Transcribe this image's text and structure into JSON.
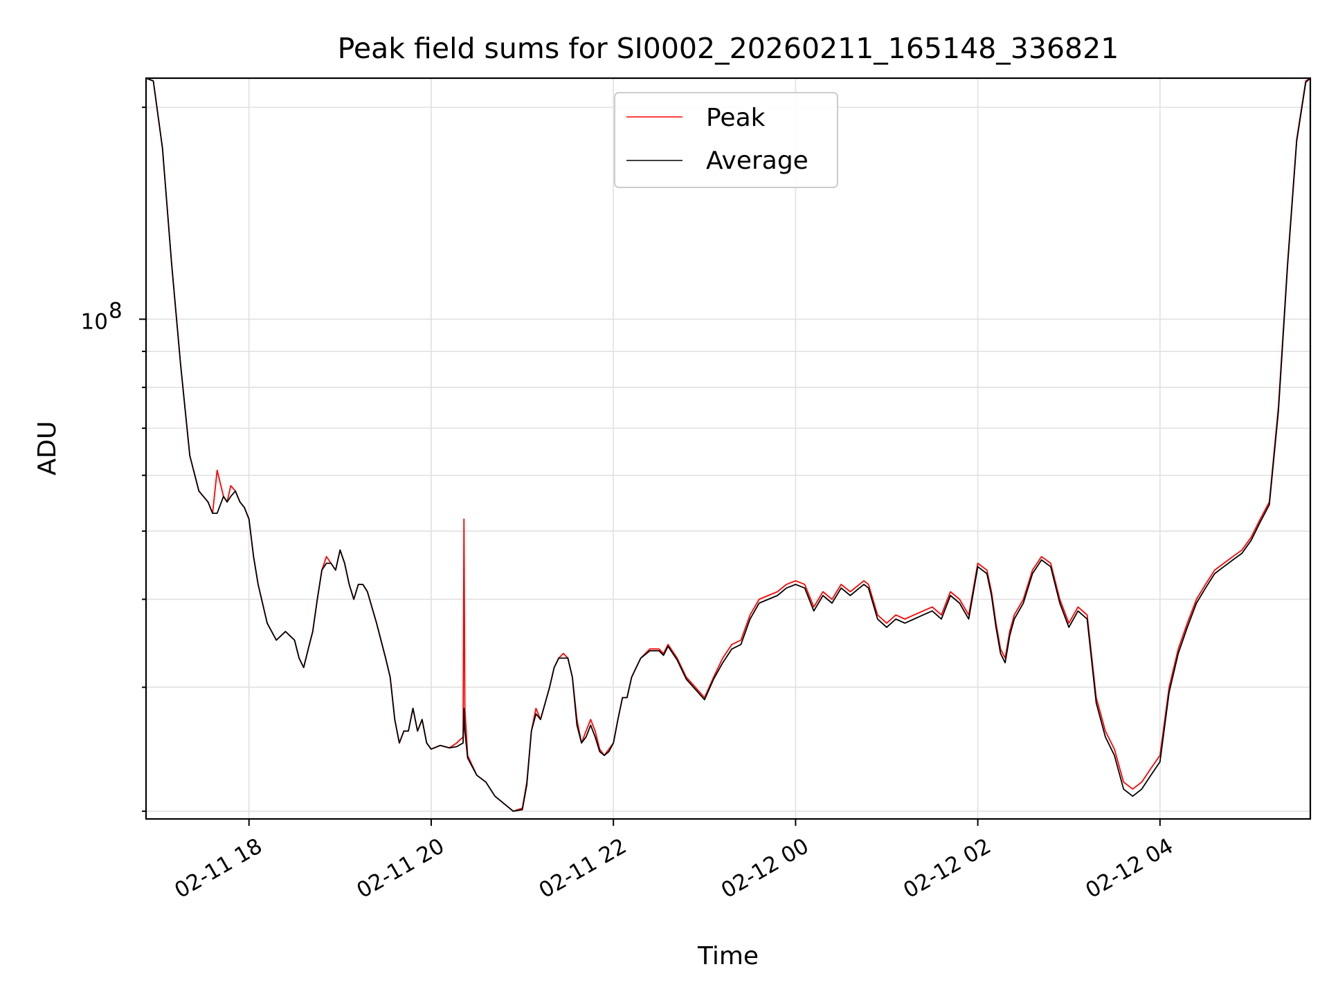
{
  "chart_data": {
    "type": "line",
    "title": "Peak field sums for SI0002_20260211_165148_336821",
    "xlabel": "Time",
    "ylabel": "ADU",
    "yscale": "log",
    "ylim": [
      19500000,
      220000000
    ],
    "xlim_hours": [
      16.87,
      29.65
    ],
    "y_tick_major": {
      "value": 100000000,
      "label_base": "10",
      "label_exp": "8"
    },
    "y_minor_ticks": [
      20000000,
      30000000,
      40000000,
      50000000,
      60000000,
      70000000,
      80000000,
      90000000,
      200000000
    ],
    "x_ticks": [
      {
        "hour": 18,
        "label": "02-11 18"
      },
      {
        "hour": 20,
        "label": "02-11 20"
      },
      {
        "hour": 22,
        "label": "02-11 22"
      },
      {
        "hour": 24,
        "label": "02-12 00"
      },
      {
        "hour": 26,
        "label": "02-12 02"
      },
      {
        "hour": 28,
        "label": "02-12 04"
      }
    ],
    "grid": true,
    "legend": {
      "position": "top-center"
    },
    "series": [
      {
        "name": "Peak",
        "color": "#ff0000",
        "x": [
          16.87,
          16.95,
          17.05,
          17.15,
          17.25,
          17.35,
          17.45,
          17.55,
          17.6,
          17.65,
          17.72,
          17.76,
          17.8,
          17.85,
          17.9,
          17.95,
          18.0,
          18.05,
          18.1,
          18.2,
          18.3,
          18.4,
          18.5,
          18.55,
          18.6,
          18.65,
          18.7,
          18.75,
          18.8,
          18.85,
          18.9,
          18.95,
          19.0,
          19.05,
          19.1,
          19.15,
          19.2,
          19.25,
          19.3,
          19.4,
          19.5,
          19.55,
          19.6,
          19.65,
          19.7,
          19.75,
          19.8,
          19.85,
          19.9,
          19.95,
          20.0,
          20.1,
          20.2,
          20.28,
          20.35,
          20.36,
          20.37,
          20.4,
          20.5,
          20.6,
          20.7,
          20.8,
          20.9,
          21.0,
          21.05,
          21.1,
          21.15,
          21.2,
          21.3,
          21.35,
          21.4,
          21.45,
          21.5,
          21.55,
          21.6,
          21.65,
          21.7,
          21.75,
          21.8,
          21.85,
          21.9,
          21.95,
          22.0,
          22.05,
          22.1,
          22.15,
          22.2,
          22.25,
          22.3,
          22.4,
          22.5,
          22.55,
          22.6,
          22.7,
          22.8,
          22.9,
          23.0,
          23.1,
          23.2,
          23.3,
          23.4,
          23.5,
          23.6,
          23.7,
          23.8,
          23.9,
          24.0,
          24.1,
          24.2,
          24.3,
          24.4,
          24.5,
          24.6,
          24.7,
          24.75,
          24.8,
          24.9,
          25.0,
          25.1,
          25.2,
          25.3,
          25.4,
          25.5,
          25.6,
          25.7,
          25.8,
          25.9,
          26.0,
          26.1,
          26.15,
          26.2,
          26.25,
          26.3,
          26.35,
          26.4,
          26.5,
          26.6,
          26.7,
          26.8,
          26.9,
          27.0,
          27.1,
          27.2,
          27.3,
          27.4,
          27.5,
          27.6,
          27.7,
          27.8,
          27.9,
          28.0,
          28.1,
          28.2,
          28.3,
          28.4,
          28.5,
          28.6,
          28.7,
          28.8,
          28.9,
          29.0,
          29.1,
          29.2,
          29.3,
          29.4,
          29.5,
          29.6,
          29.65
        ],
        "y": [
          220000000,
          218000000,
          175000000,
          120000000,
          86000000,
          64000000,
          57000000,
          55000000,
          53000000,
          61000000,
          56000000,
          55000000,
          58000000,
          57000000,
          55000000,
          54000000,
          52000000,
          46000000,
          42000000,
          37000000,
          35000000,
          36000000,
          35000000,
          33000000,
          32000000,
          34000000,
          36000000,
          40000000,
          44000000,
          46000000,
          45000000,
          44000000,
          47000000,
          45000000,
          42000000,
          40000000,
          42000000,
          42000000,
          41000000,
          37000000,
          33000000,
          31000000,
          27000000,
          25000000,
          26000000,
          26000000,
          28000000,
          26000000,
          27000000,
          25000000,
          24500000,
          24800000,
          24600000,
          25000000,
          25500000,
          52000000,
          28000000,
          24000000,
          22500000,
          22000000,
          21000000,
          20500000,
          20000000,
          20200000,
          22000000,
          26000000,
          28000000,
          27000000,
          30000000,
          32000000,
          33000000,
          33500000,
          33000000,
          31000000,
          27000000,
          25000000,
          26000000,
          27000000,
          26000000,
          24500000,
          24000000,
          24500000,
          25000000,
          27000000,
          29000000,
          29000000,
          31000000,
          32000000,
          33000000,
          34000000,
          34000000,
          33500000,
          34500000,
          33000000,
          31000000,
          30000000,
          29000000,
          31000000,
          33000000,
          34500000,
          35000000,
          38000000,
          40000000,
          40500000,
          41000000,
          42000000,
          42500000,
          42000000,
          39000000,
          41000000,
          40000000,
          42000000,
          41000000,
          42000000,
          42500000,
          42000000,
          38000000,
          37000000,
          38000000,
          37500000,
          38000000,
          38500000,
          39000000,
          38000000,
          41000000,
          40000000,
          38000000,
          45000000,
          44000000,
          41000000,
          37000000,
          34000000,
          33000000,
          36000000,
          38000000,
          40000000,
          44000000,
          46000000,
          45000000,
          40000000,
          37000000,
          39000000,
          38000000,
          29000000,
          26000000,
          24500000,
          22000000,
          21500000,
          22000000,
          23000000,
          24000000,
          30000000,
          34000000,
          37000000,
          40000000,
          42000000,
          44000000,
          45000000,
          46000000,
          47000000,
          49000000,
          52000000,
          55000000,
          75000000,
          120000000,
          180000000,
          218000000,
          220000000
        ]
      },
      {
        "name": "Average",
        "color": "#000000",
        "x": [
          16.87,
          16.95,
          17.05,
          17.15,
          17.25,
          17.35,
          17.45,
          17.55,
          17.6,
          17.65,
          17.72,
          17.76,
          17.8,
          17.85,
          17.9,
          17.95,
          18.0,
          18.05,
          18.1,
          18.2,
          18.3,
          18.4,
          18.5,
          18.55,
          18.6,
          18.65,
          18.7,
          18.75,
          18.8,
          18.85,
          18.9,
          18.95,
          19.0,
          19.05,
          19.1,
          19.15,
          19.2,
          19.25,
          19.3,
          19.4,
          19.5,
          19.55,
          19.6,
          19.65,
          19.7,
          19.75,
          19.8,
          19.85,
          19.9,
          19.95,
          20.0,
          20.1,
          20.2,
          20.28,
          20.35,
          20.36,
          20.37,
          20.4,
          20.5,
          20.6,
          20.7,
          20.8,
          20.9,
          21.0,
          21.05,
          21.1,
          21.15,
          21.2,
          21.3,
          21.35,
          21.4,
          21.45,
          21.5,
          21.55,
          21.6,
          21.65,
          21.7,
          21.75,
          21.8,
          21.85,
          21.9,
          21.95,
          22.0,
          22.05,
          22.1,
          22.15,
          22.2,
          22.25,
          22.3,
          22.4,
          22.5,
          22.55,
          22.6,
          22.7,
          22.8,
          22.9,
          23.0,
          23.1,
          23.2,
          23.3,
          23.4,
          23.5,
          23.6,
          23.7,
          23.8,
          23.9,
          24.0,
          24.1,
          24.2,
          24.3,
          24.4,
          24.5,
          24.6,
          24.7,
          24.75,
          24.8,
          24.9,
          25.0,
          25.1,
          25.2,
          25.3,
          25.4,
          25.5,
          25.6,
          25.7,
          25.8,
          25.9,
          26.0,
          26.1,
          26.15,
          26.2,
          26.25,
          26.3,
          26.35,
          26.4,
          26.5,
          26.6,
          26.7,
          26.8,
          26.9,
          27.0,
          27.1,
          27.2,
          27.3,
          27.4,
          27.5,
          27.6,
          27.7,
          27.8,
          27.9,
          28.0,
          28.1,
          28.2,
          28.3,
          28.4,
          28.5,
          28.6,
          28.7,
          28.8,
          28.9,
          29.0,
          29.1,
          29.2,
          29.3,
          29.4,
          29.5,
          29.6,
          29.65
        ],
        "y": [
          220000000,
          218000000,
          175000000,
          120000000,
          86000000,
          64000000,
          57000000,
          55000000,
          53000000,
          53000000,
          56000000,
          55000000,
          56000000,
          57000000,
          55000000,
          54000000,
          52000000,
          46000000,
          42000000,
          37000000,
          35000000,
          36000000,
          35000000,
          33000000,
          32000000,
          34000000,
          36000000,
          40000000,
          44000000,
          45000000,
          45000000,
          44000000,
          47000000,
          45000000,
          42000000,
          40000000,
          42000000,
          42000000,
          41000000,
          37000000,
          33000000,
          31000000,
          27000000,
          25000000,
          26000000,
          26000000,
          28000000,
          26000000,
          27000000,
          25000000,
          24500000,
          24800000,
          24600000,
          24700000,
          25000000,
          28000000,
          26000000,
          23800000,
          22500000,
          22000000,
          21000000,
          20500000,
          20000000,
          20100000,
          21800000,
          26000000,
          27500000,
          27000000,
          30000000,
          32000000,
          33000000,
          33000000,
          33000000,
          31000000,
          26500000,
          25000000,
          25500000,
          26500000,
          25500000,
          24300000,
          24000000,
          24300000,
          25000000,
          27000000,
          29000000,
          29000000,
          31000000,
          32000000,
          33000000,
          33800000,
          33800000,
          33300000,
          34300000,
          32800000,
          30800000,
          29800000,
          28800000,
          30800000,
          32500000,
          34000000,
          34500000,
          37500000,
          39500000,
          40000000,
          40500000,
          41500000,
          42000000,
          41500000,
          38500000,
          40500000,
          39500000,
          41500000,
          40500000,
          41500000,
          42000000,
          41500000,
          37500000,
          36500000,
          37500000,
          37000000,
          37500000,
          38000000,
          38500000,
          37500000,
          40500000,
          39500000,
          37500000,
          44500000,
          43500000,
          40500000,
          36500000,
          33500000,
          32500000,
          35500000,
          37500000,
          39500000,
          43500000,
          45500000,
          44500000,
          39500000,
          36500000,
          38500000,
          37500000,
          28500000,
          25500000,
          24000000,
          21500000,
          21000000,
          21500000,
          22500000,
          23500000,
          29500000,
          33500000,
          36500000,
          39500000,
          41500000,
          43500000,
          44500000,
          45500000,
          46500000,
          48500000,
          51500000,
          54500000,
          74000000,
          119000000,
          179000000,
          217000000,
          220000000
        ]
      }
    ]
  }
}
